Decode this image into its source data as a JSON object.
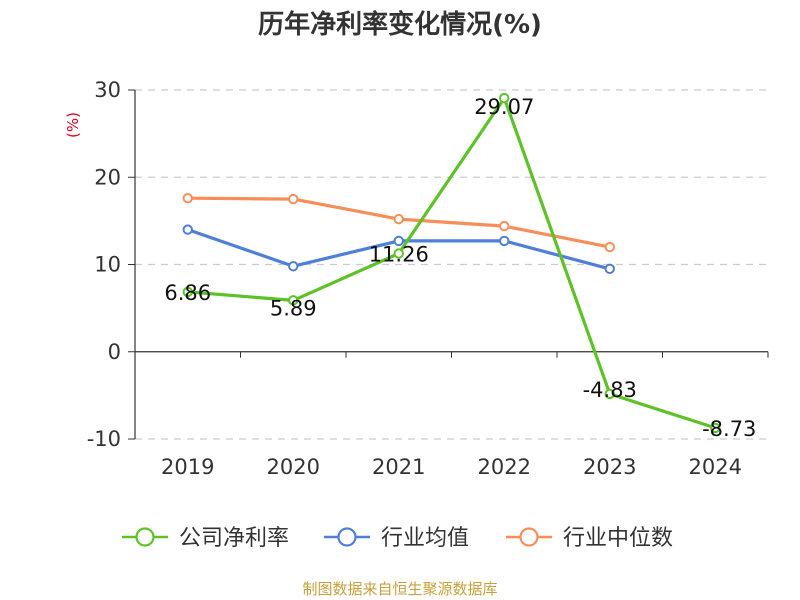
{
  "chart_data": {
    "type": "line",
    "title": "历年净利率变化情况(%)",
    "ylabel": "(%)",
    "categories": [
      "2019",
      "2020",
      "2021",
      "2022",
      "2023",
      "2024"
    ],
    "ylim": [
      -10,
      30
    ],
    "yticks": [
      -10,
      0,
      10,
      20,
      30
    ],
    "grid": true,
    "legend_position": "bottom",
    "series": [
      {
        "name": "公司净利率",
        "color": "#5cc228",
        "values": [
          6.86,
          5.89,
          11.26,
          29.07,
          -4.83,
          -8.73
        ],
        "labels": [
          "6.86",
          "5.89",
          "11.26",
          "29.07",
          "-4.83",
          "-8.73"
        ]
      },
      {
        "name": "行业均值",
        "color": "#4f7fdb",
        "values": [
          14.0,
          9.8,
          12.7,
          12.7,
          9.5,
          null
        ]
      },
      {
        "name": "行业中位数",
        "color": "#f78e5a",
        "values": [
          17.6,
          17.5,
          15.2,
          14.4,
          12.0,
          null
        ]
      }
    ],
    "source": "制图数据来自恒生聚源数据库"
  }
}
